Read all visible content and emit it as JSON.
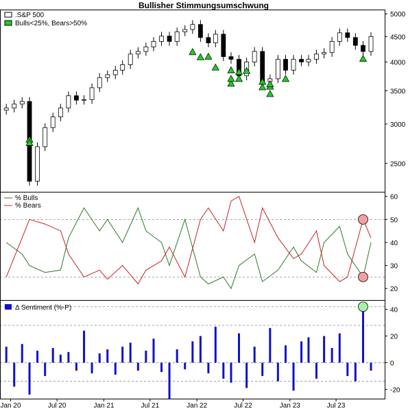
{
  "title": "Bullisher Stimmungsumschwung",
  "colors": {
    "up_candle": "#ffffff",
    "down_candle": "#000000",
    "triangle": "#22cc22",
    "bulls": "#2a7a2a",
    "bears": "#cc2020",
    "sentiment_bar": "#1010cc",
    "highlight_red": "#f4a0a0",
    "highlight_green": "#a8f0a8"
  },
  "chart_data": [
    {
      "type": "line",
      "panel": "price",
      "legend": [
        ".S&P 500",
        "Bulls<25%, Bears>50%"
      ],
      "scale": "log",
      "ylim": [
        2190,
        5100
      ],
      "yticks": [
        2500,
        3000,
        3500,
        4000,
        4500,
        5000
      ],
      "xticks": [
        "Jan 20",
        "Jul 20",
        "Jan 21",
        "Jul 21",
        "Jan 22",
        "Jul 22",
        "Jan 23",
        "Jul 23"
      ],
      "x_dates": [
        "2019-12",
        "2020-03",
        "2020-06",
        "2020-09",
        "2020-12",
        "2021-03",
        "2021-06",
        "2021-09",
        "2021-12",
        "2022-03",
        "2022-06",
        "2022-09",
        "2022-12",
        "2023-03",
        "2023-06",
        "2023-09",
        "2023-11"
      ],
      "series": [
        {
          "name": ".S&P 500",
          "x": [
            "2019-12",
            "2020-01",
            "2020-02",
            "2020-03",
            "2020-04",
            "2020-05",
            "2020-06",
            "2020-07",
            "2020-08",
            "2020-09",
            "2020-10",
            "2020-11",
            "2020-12",
            "2021-01",
            "2021-02",
            "2021-03",
            "2021-04",
            "2021-05",
            "2021-06",
            "2021-07",
            "2021-08",
            "2021-09",
            "2021-10",
            "2021-11",
            "2021-12",
            "2022-01",
            "2022-02",
            "2022-03",
            "2022-04",
            "2022-05",
            "2022-06",
            "2022-07",
            "2022-08",
            "2022-09",
            "2022-10",
            "2022-11",
            "2022-12",
            "2023-01",
            "2023-02",
            "2023-03",
            "2023-04",
            "2023-05",
            "2023-06",
            "2023-07",
            "2023-08",
            "2023-09",
            "2023-10",
            "2023-11"
          ],
          "values": [
            3230,
            3290,
            3330,
            2300,
            2700,
            2950,
            3100,
            3230,
            3420,
            3350,
            3360,
            3550,
            3720,
            3770,
            3850,
            3950,
            4150,
            4200,
            4290,
            4400,
            4510,
            4400,
            4600,
            4650,
            4760,
            4480,
            4370,
            4550,
            4100,
            4050,
            3750,
            4000,
            4200,
            3650,
            3700,
            4050,
            3850,
            4050,
            4000,
            4050,
            4150,
            4180,
            4400,
            4580,
            4480,
            4320,
            4200,
            4500
          ]
        }
      ],
      "signals": {
        "name": "Bulls<25%, Bears>50%",
        "x": [
          "2020-03",
          "2020-03",
          "2021-12",
          "2022-01",
          "2022-02",
          "2022-03",
          "2022-05",
          "2022-05",
          "2022-05",
          "2022-06",
          "2022-06",
          "2022-07",
          "2022-09",
          "2022-09",
          "2022-10",
          "2022-10",
          "2022-10",
          "2022-12",
          "2023-10"
        ],
        "values": [
          2790,
          2750,
          4190,
          4090,
          4100,
          3900,
          3850,
          3620,
          3700,
          3700,
          3820,
          3840,
          3650,
          3560,
          3570,
          3450,
          3610,
          3700,
          4060
        ]
      }
    },
    {
      "type": "line",
      "panel": "sentiment",
      "ylim": [
        15,
        62
      ],
      "yticks": [
        20,
        30,
        40,
        50,
        60
      ],
      "reference_lines": [
        50,
        25
      ],
      "series": [
        {
          "name": "% Bulls",
          "x": [
            "2019-12",
            "2020-02",
            "2020-03",
            "2020-05",
            "2020-07",
            "2020-08",
            "2020-10",
            "2020-12",
            "2021-01",
            "2021-03",
            "2021-05",
            "2021-06",
            "2021-08",
            "2021-09",
            "2021-11",
            "2022-01",
            "2022-02",
            "2022-04",
            "2022-05",
            "2022-06",
            "2022-08",
            "2022-09",
            "2022-11",
            "2023-01",
            "2023-02",
            "2023-04",
            "2023-05",
            "2023-07",
            "2023-08",
            "2023-10",
            "2023-11"
          ],
          "values": [
            40,
            35,
            30,
            27,
            28,
            42,
            55,
            45,
            50,
            40,
            55,
            45,
            40,
            30,
            50,
            25,
            22,
            25,
            20,
            30,
            35,
            23,
            28,
            38,
            32,
            27,
            40,
            47,
            35,
            25,
            40
          ]
        },
        {
          "name": "% Bears",
          "x": [
            "2019-12",
            "2020-02",
            "2020-03",
            "2020-05",
            "2020-07",
            "2020-08",
            "2020-10",
            "2020-12",
            "2021-01",
            "2021-03",
            "2021-05",
            "2021-06",
            "2021-08",
            "2021-09",
            "2021-11",
            "2022-01",
            "2022-02",
            "2022-04",
            "2022-05",
            "2022-06",
            "2022-08",
            "2022-09",
            "2022-11",
            "2023-01",
            "2023-02",
            "2023-04",
            "2023-05",
            "2023-07",
            "2023-08",
            "2023-10",
            "2023-11"
          ],
          "values": [
            25,
            42,
            50,
            48,
            45,
            35,
            25,
            28,
            24,
            30,
            22,
            28,
            32,
            38,
            25,
            50,
            55,
            45,
            58,
            60,
            40,
            55,
            42,
            33,
            35,
            45,
            30,
            23,
            25,
            50,
            42
          ]
        }
      ],
      "highlights": [
        {
          "x": "2023-10",
          "value": 50,
          "series": "% Bears"
        },
        {
          "x": "2023-10",
          "value": 25,
          "series": "% Bulls"
        }
      ]
    },
    {
      "type": "bar",
      "panel": "delta",
      "legend": [
        "Δ Sentiment (%-P)"
      ],
      "ylim": [
        -27,
        47
      ],
      "yticks": [
        -20,
        0,
        20,
        40
      ],
      "reference_lines": [
        42,
        28,
        0,
        -14
      ],
      "x": [
        "2019-12",
        "2020-01",
        "2020-02",
        "2020-03",
        "2020-04",
        "2020-05",
        "2020-06",
        "2020-07",
        "2020-08",
        "2020-09",
        "2020-10",
        "2020-11",
        "2020-12",
        "2021-01",
        "2021-02",
        "2021-03",
        "2021-04",
        "2021-05",
        "2021-06",
        "2021-07",
        "2021-08",
        "2021-09",
        "2021-10",
        "2021-11",
        "2021-12",
        "2022-01",
        "2022-02",
        "2022-03",
        "2022-04",
        "2022-05",
        "2022-06",
        "2022-07",
        "2022-08",
        "2022-09",
        "2022-10",
        "2022-11",
        "2022-12",
        "2023-01",
        "2023-02",
        "2023-03",
        "2023-04",
        "2023-05",
        "2023-06",
        "2023-07",
        "2023-08",
        "2023-09",
        "2023-10",
        "2023-11"
      ],
      "values": [
        12,
        -18,
        14,
        -24,
        9,
        -10,
        11,
        6,
        8,
        -6,
        24,
        -8,
        7,
        10,
        -9,
        12,
        15,
        -6,
        9,
        18,
        -7,
        -27,
        10,
        -5,
        16,
        20,
        -8,
        27,
        -12,
        -15,
        22,
        -19,
        12,
        -10,
        26,
        -14,
        13,
        -21,
        16,
        19,
        -12,
        20,
        11,
        22,
        -10,
        -14,
        42,
        -6
      ],
      "highlights": [
        {
          "x": "2023-10",
          "value": 42
        }
      ]
    }
  ]
}
